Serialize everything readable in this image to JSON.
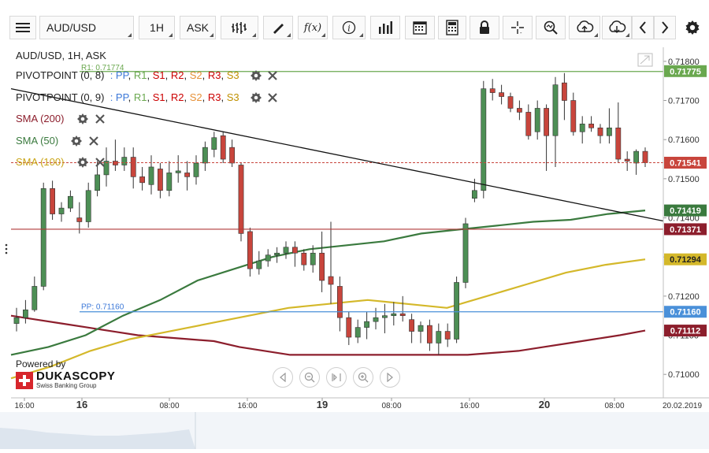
{
  "toolbar": {
    "symbol": "AUD/USD",
    "timeframe": "1H",
    "side": "ASK",
    "icons": [
      "menu-icon",
      "bar-type-icon",
      "draw-icon",
      "function-icon",
      "info-icon",
      "volume-icon",
      "calendar-icon",
      "calculator-icon",
      "lock-icon",
      "crosshair-icon",
      "zoom-icon",
      "upload-icon",
      "download-icon",
      "prev-icon",
      "next-icon",
      "settings-icon"
    ]
  },
  "overlays": {
    "title": "AUD/USD, 1H, ASK",
    "rows": [
      {
        "name": "PIVOTPOINT (0, 8)",
        "params": ": PP, R1, S1, R2, S2, R3, S3"
      },
      {
        "name": "PIVOTPOINT (0, 9)",
        "params": ": PP, R1, S1, R2, S2, R3, S3"
      },
      {
        "name": "SMA (200)"
      },
      {
        "name": "SMA (50)"
      },
      {
        "name": "SMA (100)"
      }
    ],
    "pivot_params": [
      "PP",
      "R1",
      "S1",
      "R2",
      "S2",
      "R3",
      "S3"
    ]
  },
  "colors": {
    "bull": "#4d8f55",
    "bear": "#c8453c",
    "sma200": "#8c1e2c",
    "sma50": "#3a7a3e",
    "sma100": "#d4b82a",
    "pp": "#4a90d9",
    "r1": "#6aa84f",
    "trend": "#111111",
    "pp_label": "#3c78d8",
    "r1_label": "#cc0000",
    "s1_label": "#e69138",
    "r2_label": "#cc0000",
    "s2_label": "#e69138",
    "r3_label": "#bf9000",
    "s3_label": "#bf9000"
  },
  "chart_data": {
    "type": "candlestick",
    "symbol": "AUD/USD",
    "timeframe": "1H",
    "ylim": [
      0.7094,
      0.7184
    ],
    "y_ticks": [
      "0.71000",
      "0.71100",
      "0.71200",
      "0.71300",
      "0.71400",
      "0.71500",
      "0.71600",
      "0.71700",
      "0.71800"
    ],
    "x_ticks": [
      "16:00",
      "16",
      "08:00",
      "16:00",
      "19",
      "08:00",
      "16:00",
      "20",
      "08:00",
      "20.02.2019"
    ],
    "x_ticks_bold": [
      "16",
      "19",
      "20"
    ],
    "price_labels": [
      {
        "value": 0.71775,
        "text": "0.71775",
        "key": "r1"
      },
      {
        "value": 0.71541,
        "text": "0.71541",
        "key": "bear"
      },
      {
        "value": 0.71419,
        "text": "0.71419",
        "key": "sma50"
      },
      {
        "value": 0.71371,
        "text": "0.71371",
        "key": "sma200"
      },
      {
        "value": 0.71294,
        "text": "0.71294",
        "key": "sma100"
      },
      {
        "value": 0.7116,
        "text": "0.71160",
        "key": "pp"
      },
      {
        "value": 0.71112,
        "text": "0.71112",
        "key": "sma200"
      }
    ],
    "levels": [
      {
        "name": "R1",
        "value": 0.71774,
        "label": "R1: 0.71774"
      },
      {
        "name": "PP",
        "value": 0.7116,
        "label": "PP: 0.71160"
      },
      {
        "name": "last",
        "value": 0.71541
      },
      {
        "name": "S",
        "value": 0.71371
      }
    ],
    "candles": [
      {
        "o": 0.7113,
        "h": 0.7117,
        "l": 0.7111,
        "c": 0.71145
      },
      {
        "o": 0.71145,
        "h": 0.7119,
        "l": 0.7113,
        "c": 0.71165
      },
      {
        "o": 0.71165,
        "h": 0.7125,
        "l": 0.7116,
        "c": 0.71225
      },
      {
        "o": 0.71225,
        "h": 0.7149,
        "l": 0.71215,
        "c": 0.71475
      },
      {
        "o": 0.71475,
        "h": 0.71495,
        "l": 0.71395,
        "c": 0.7141
      },
      {
        "o": 0.7141,
        "h": 0.7144,
        "l": 0.7139,
        "c": 0.71425
      },
      {
        "o": 0.71425,
        "h": 0.7147,
        "l": 0.71415,
        "c": 0.71455
      },
      {
        "o": 0.714,
        "h": 0.7144,
        "l": 0.7136,
        "c": 0.7139
      },
      {
        "o": 0.7139,
        "h": 0.7149,
        "l": 0.71375,
        "c": 0.7147
      },
      {
        "o": 0.7147,
        "h": 0.71545,
        "l": 0.71455,
        "c": 0.7151
      },
      {
        "o": 0.7151,
        "h": 0.7158,
        "l": 0.7148,
        "c": 0.71545
      },
      {
        "o": 0.71545,
        "h": 0.716,
        "l": 0.7152,
        "c": 0.71535
      },
      {
        "o": 0.71535,
        "h": 0.7158,
        "l": 0.7152,
        "c": 0.71555
      },
      {
        "o": 0.71555,
        "h": 0.7158,
        "l": 0.71475,
        "c": 0.71505
      },
      {
        "o": 0.71505,
        "h": 0.7153,
        "l": 0.7147,
        "c": 0.7149
      },
      {
        "o": 0.71485,
        "h": 0.7156,
        "l": 0.7146,
        "c": 0.7153
      },
      {
        "o": 0.71525,
        "h": 0.7154,
        "l": 0.7145,
        "c": 0.7147
      },
      {
        "o": 0.7147,
        "h": 0.71545,
        "l": 0.71455,
        "c": 0.71515
      },
      {
        "o": 0.71515,
        "h": 0.7156,
        "l": 0.7149,
        "c": 0.7152
      },
      {
        "o": 0.71515,
        "h": 0.71545,
        "l": 0.7147,
        "c": 0.71505
      },
      {
        "o": 0.71505,
        "h": 0.7156,
        "l": 0.71485,
        "c": 0.7154
      },
      {
        "o": 0.7154,
        "h": 0.71595,
        "l": 0.7152,
        "c": 0.7158
      },
      {
        "o": 0.71575,
        "h": 0.7162,
        "l": 0.71555,
        "c": 0.71605
      },
      {
        "o": 0.7161,
        "h": 0.7162,
        "l": 0.7154,
        "c": 0.7155
      },
      {
        "o": 0.7158,
        "h": 0.716,
        "l": 0.7153,
        "c": 0.7154
      },
      {
        "o": 0.71535,
        "h": 0.7154,
        "l": 0.7134,
        "c": 0.7136
      },
      {
        "o": 0.71365,
        "h": 0.71375,
        "l": 0.7125,
        "c": 0.7127
      },
      {
        "o": 0.7127,
        "h": 0.71315,
        "l": 0.71255,
        "c": 0.7129
      },
      {
        "o": 0.7129,
        "h": 0.7132,
        "l": 0.71275,
        "c": 0.71305
      },
      {
        "o": 0.71305,
        "h": 0.71325,
        "l": 0.71285,
        "c": 0.7131
      },
      {
        "o": 0.7131,
        "h": 0.7134,
        "l": 0.71295,
        "c": 0.71325
      },
      {
        "o": 0.71325,
        "h": 0.7134,
        "l": 0.71275,
        "c": 0.7131
      },
      {
        "o": 0.7131,
        "h": 0.7132,
        "l": 0.71265,
        "c": 0.7128
      },
      {
        "o": 0.7128,
        "h": 0.7133,
        "l": 0.7126,
        "c": 0.7131
      },
      {
        "o": 0.7131,
        "h": 0.71365,
        "l": 0.7121,
        "c": 0.7124
      },
      {
        "o": 0.7125,
        "h": 0.7139,
        "l": 0.7118,
        "c": 0.7123
      },
      {
        "o": 0.71225,
        "h": 0.7125,
        "l": 0.7111,
        "c": 0.71145
      },
      {
        "o": 0.71145,
        "h": 0.7116,
        "l": 0.71075,
        "c": 0.71095
      },
      {
        "o": 0.71095,
        "h": 0.7114,
        "l": 0.7108,
        "c": 0.7112
      },
      {
        "o": 0.7112,
        "h": 0.7116,
        "l": 0.7109,
        "c": 0.71135
      },
      {
        "o": 0.71135,
        "h": 0.7117,
        "l": 0.71115,
        "c": 0.71145
      },
      {
        "o": 0.71145,
        "h": 0.7118,
        "l": 0.71105,
        "c": 0.7115
      },
      {
        "o": 0.7115,
        "h": 0.71185,
        "l": 0.71125,
        "c": 0.71155
      },
      {
        "o": 0.71155,
        "h": 0.712,
        "l": 0.71135,
        "c": 0.7115
      },
      {
        "o": 0.7114,
        "h": 0.71155,
        "l": 0.7108,
        "c": 0.7111
      },
      {
        "o": 0.7111,
        "h": 0.71135,
        "l": 0.7108,
        "c": 0.71125
      },
      {
        "o": 0.71125,
        "h": 0.7114,
        "l": 0.7106,
        "c": 0.7108
      },
      {
        "o": 0.7108,
        "h": 0.7113,
        "l": 0.7105,
        "c": 0.7111
      },
      {
        "o": 0.7111,
        "h": 0.7113,
        "l": 0.7107,
        "c": 0.7109
      },
      {
        "o": 0.7109,
        "h": 0.7125,
        "l": 0.7108,
        "c": 0.71235
      },
      {
        "o": 0.71235,
        "h": 0.714,
        "l": 0.7122,
        "c": 0.71385
      },
      {
        "o": 0.7145,
        "h": 0.715,
        "l": 0.7144,
        "c": 0.7147
      },
      {
        "o": 0.7147,
        "h": 0.7175,
        "l": 0.7145,
        "c": 0.7173
      },
      {
        "o": 0.7173,
        "h": 0.71755,
        "l": 0.717,
        "c": 0.7172
      },
      {
        "o": 0.7172,
        "h": 0.7174,
        "l": 0.7169,
        "c": 0.7171
      },
      {
        "o": 0.7171,
        "h": 0.7172,
        "l": 0.7167,
        "c": 0.7168
      },
      {
        "o": 0.7168,
        "h": 0.717,
        "l": 0.7165,
        "c": 0.7167
      },
      {
        "o": 0.7167,
        "h": 0.7169,
        "l": 0.716,
        "c": 0.7161
      },
      {
        "o": 0.7162,
        "h": 0.717,
        "l": 0.716,
        "c": 0.7168
      },
      {
        "o": 0.7168,
        "h": 0.7169,
        "l": 0.7152,
        "c": 0.7161
      },
      {
        "o": 0.7161,
        "h": 0.7176,
        "l": 0.7153,
        "c": 0.7174
      },
      {
        "o": 0.71745,
        "h": 0.7177,
        "l": 0.7165,
        "c": 0.717
      },
      {
        "o": 0.717,
        "h": 0.7172,
        "l": 0.7161,
        "c": 0.7162
      },
      {
        "o": 0.7162,
        "h": 0.7166,
        "l": 0.7159,
        "c": 0.7164
      },
      {
        "o": 0.7164,
        "h": 0.7166,
        "l": 0.7162,
        "c": 0.7163
      },
      {
        "o": 0.7163,
        "h": 0.7164,
        "l": 0.7159,
        "c": 0.7161
      },
      {
        "o": 0.7161,
        "h": 0.7168,
        "l": 0.7159,
        "c": 0.7163
      },
      {
        "o": 0.7163,
        "h": 0.71695,
        "l": 0.7154,
        "c": 0.7155
      },
      {
        "o": 0.7155,
        "h": 0.7157,
        "l": 0.7152,
        "c": 0.71545
      },
      {
        "o": 0.7154,
        "h": 0.71575,
        "l": 0.7151,
        "c": 0.7157
      },
      {
        "o": 0.7157,
        "h": 0.7158,
        "l": 0.7153,
        "c": 0.71541
      }
    ],
    "sma200": [
      0.7115,
      0.7114,
      0.7113,
      0.7112,
      0.7111,
      0.711,
      0.71095,
      0.7109,
      0.71085,
      0.7107,
      0.7106,
      0.7105,
      0.7105,
      0.7105,
      0.7105,
      0.7105,
      0.7105,
      0.7105,
      0.7105,
      0.71055,
      0.7106,
      0.7107,
      0.7108,
      0.7109,
      0.711,
      0.71112
    ],
    "sma50": [
      0.7105,
      0.7107,
      0.711,
      0.7115,
      0.7119,
      0.7124,
      0.7127,
      0.713,
      0.7132,
      0.7133,
      0.7134,
      0.7136,
      0.7137,
      0.7138,
      0.7139,
      0.71395,
      0.7141,
      0.71419
    ],
    "sma100": [
      0.7099,
      0.7102,
      0.7106,
      0.7109,
      0.7111,
      0.7113,
      0.7115,
      0.7117,
      0.7118,
      0.7119,
      0.7118,
      0.7117,
      0.712,
      0.7123,
      0.7126,
      0.7128,
      0.71294
    ],
    "trend": {
      "start": 0.7173,
      "end": 0.71392
    }
  },
  "branding": {
    "powered_by": "Powered by",
    "name": "DUKASCOPY",
    "tagline": "Swiss Banking Group"
  }
}
